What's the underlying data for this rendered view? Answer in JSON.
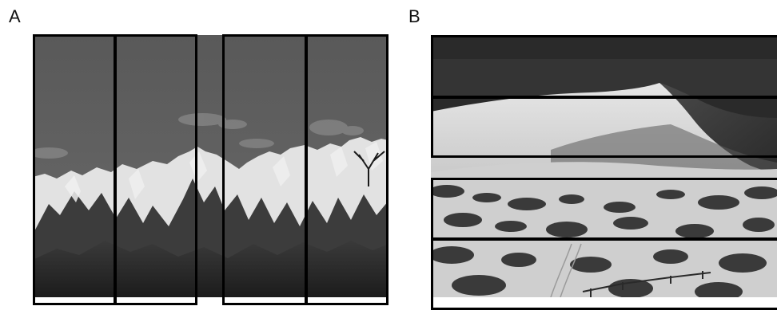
{
  "panels": {
    "a": {
      "label": "A"
    },
    "b": {
      "label": "B"
    }
  },
  "colors": {
    "outline": "#000000",
    "sky_a": "#5c5c5c",
    "snow": "#e4e4e4",
    "rock": "#2b2b2b",
    "sky_b": "#2a2a2a",
    "dune_light": "#d6d6d6",
    "sand": "#c9c9c9",
    "shrub": "#3a3a3a"
  }
}
